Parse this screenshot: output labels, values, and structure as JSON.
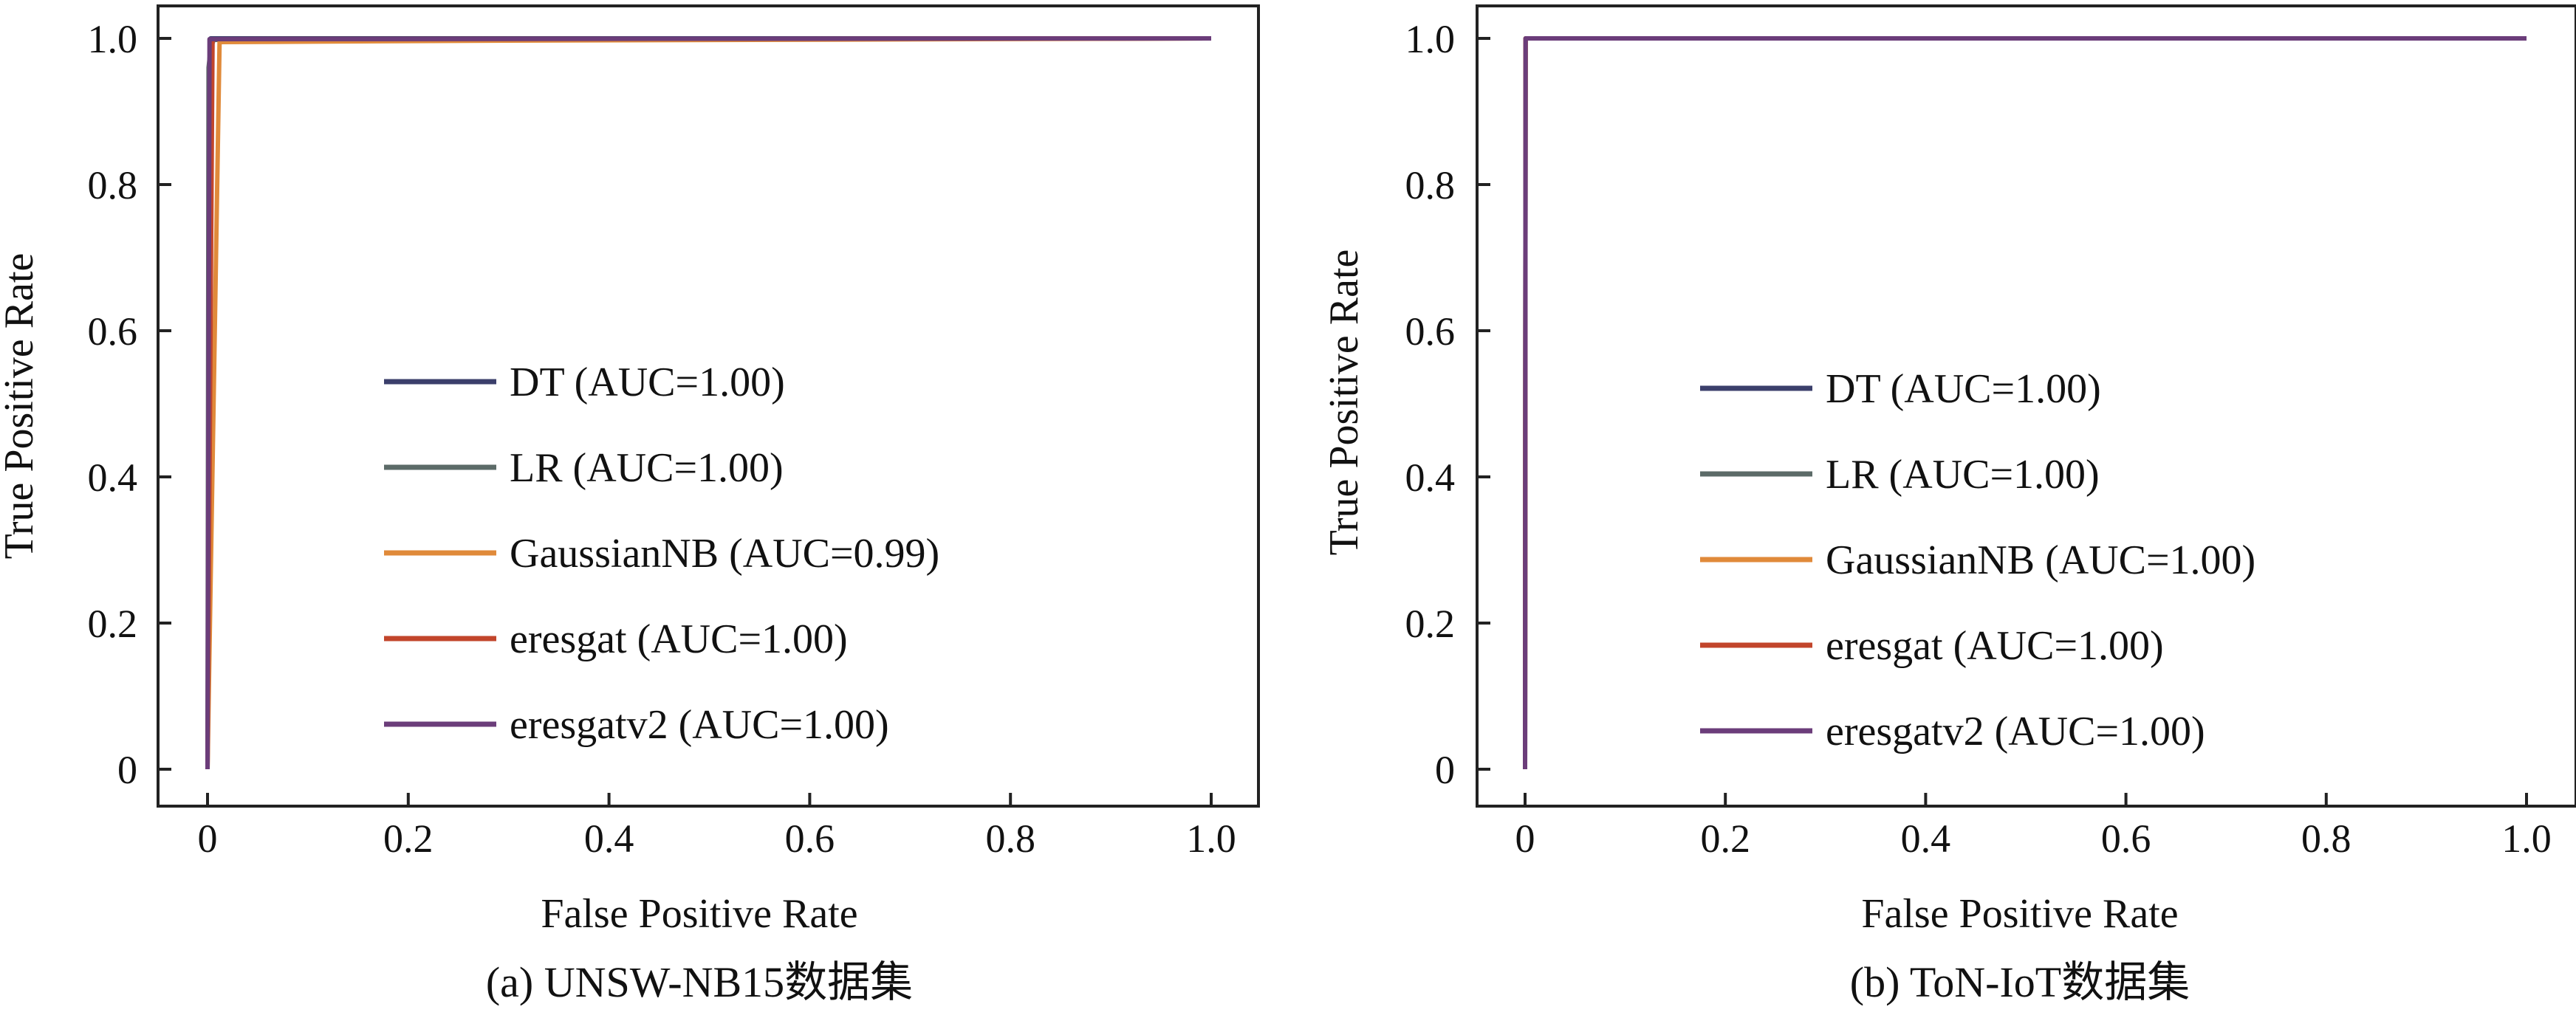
{
  "chart_data": [
    {
      "type": "line",
      "caption": "(a) UNSW-NB15数据集",
      "xlabel": "False Positive Rate",
      "ylabel": "True Positive Rate",
      "xlim": [
        0,
        1
      ],
      "ylim": [
        0,
        1
      ],
      "xticks": [
        0,
        0.2,
        0.4,
        0.6,
        0.8,
        1.0
      ],
      "xtick_labels": [
        "0",
        "0.2",
        "0.4",
        "0.6",
        "0.8",
        "1.0"
      ],
      "yticks": [
        0,
        0.2,
        0.4,
        0.6,
        0.8,
        1.0
      ],
      "ytick_labels": [
        "0",
        "0.2",
        "0.4",
        "0.6",
        "0.8",
        "1.0"
      ],
      "grid": false,
      "legend_position": "center",
      "series": [
        {
          "name": "DT (AUC=1.00)",
          "color": "#3b3f6b",
          "x": [
            0,
            0.003,
            1.0
          ],
          "y": [
            0,
            1.0,
            1.0
          ]
        },
        {
          "name": "LR (AUC=1.00)",
          "color": "#5c6b68",
          "x": [
            0,
            0.001,
            0.003,
            0.006,
            1.0
          ],
          "y": [
            0,
            0.96,
            0.985,
            0.998,
            1.0
          ]
        },
        {
          "name": "GaussianNB (AUC=0.99)",
          "color": "#e08a3a",
          "x": [
            0,
            0.012,
            0.3,
            1.0
          ],
          "y": [
            0,
            0.995,
            0.997,
            1.0
          ]
        },
        {
          "name": "eresgat (AUC=1.00)",
          "color": "#c2452b",
          "x": [
            0,
            0.005,
            1.0
          ],
          "y": [
            0,
            0.999,
            1.0
          ]
        },
        {
          "name": "eresgatv2 (AUC=1.00)",
          "color": "#6b3d7a",
          "x": [
            0,
            0.002,
            1.0
          ],
          "y": [
            0,
            0.999,
            1.0
          ]
        }
      ]
    },
    {
      "type": "line",
      "caption": "(b) ToN-IoT数据集",
      "xlabel": "False Positive Rate",
      "ylabel": "True Positive Rate",
      "xlim": [
        0,
        1
      ],
      "ylim": [
        0,
        1
      ],
      "xticks": [
        0,
        0.2,
        0.4,
        0.6,
        0.8,
        1.0
      ],
      "xtick_labels": [
        "0",
        "0.2",
        "0.4",
        "0.6",
        "0.8",
        "1.0"
      ],
      "yticks": [
        0,
        0.2,
        0.4,
        0.6,
        0.8,
        1.0
      ],
      "ytick_labels": [
        "0",
        "0.2",
        "0.4",
        "0.6",
        "0.8",
        "1.0"
      ],
      "grid": false,
      "legend_position": "center",
      "series": [
        {
          "name": "DT (AUC=1.00)",
          "color": "#3b3f6b",
          "x": [
            0,
            0.0005,
            1.0
          ],
          "y": [
            0,
            1.0,
            1.0
          ]
        },
        {
          "name": "LR (AUC=1.00)",
          "color": "#5c6b68",
          "x": [
            0,
            0.0005,
            1.0
          ],
          "y": [
            0,
            1.0,
            1.0
          ]
        },
        {
          "name": "GaussianNB (AUC=1.00)",
          "color": "#e08a3a",
          "x": [
            0,
            0.0005,
            1.0
          ],
          "y": [
            0,
            1.0,
            1.0
          ]
        },
        {
          "name": "eresgat (AUC=1.00)",
          "color": "#c2452b",
          "x": [
            0,
            0.0005,
            1.0
          ],
          "y": [
            0,
            1.0,
            1.0
          ]
        },
        {
          "name": "eresgatv2 (AUC=1.00)",
          "color": "#6b3d7a",
          "x": [
            0,
            0.0005,
            1.0
          ],
          "y": [
            0,
            1.0,
            1.0
          ]
        }
      ]
    }
  ]
}
